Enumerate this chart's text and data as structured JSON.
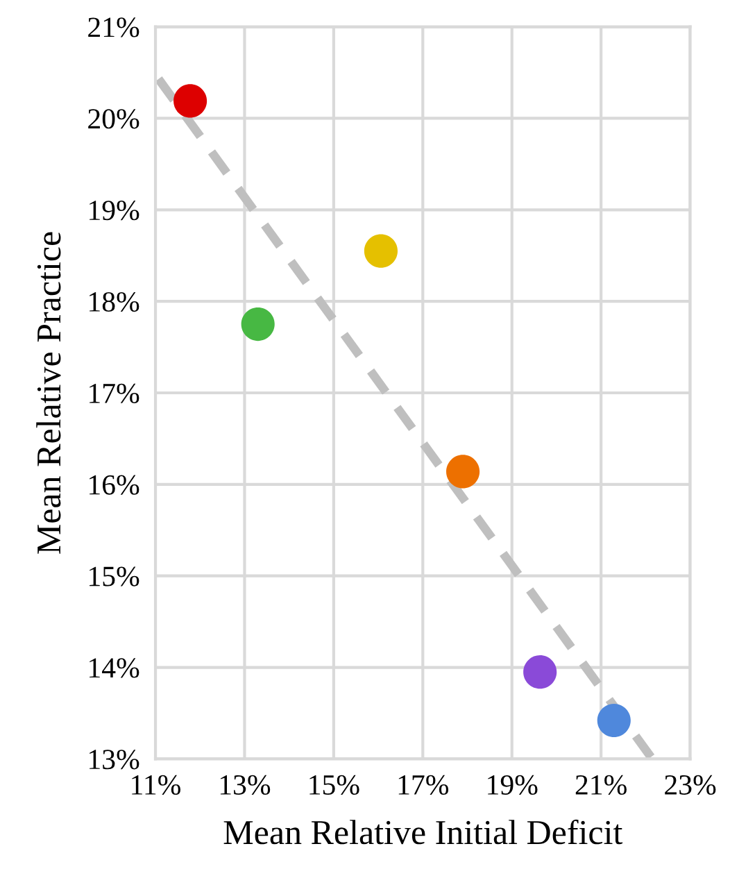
{
  "chart_data": {
    "type": "scatter",
    "xlabel": "Mean Relative Initial Deficit",
    "ylabel": "Mean Relative Practice",
    "xlim": [
      11,
      23
    ],
    "ylim": [
      13,
      21
    ],
    "xticks": [
      {
        "value": 11,
        "label": "11%"
      },
      {
        "value": 13,
        "label": "13%"
      },
      {
        "value": 15,
        "label": "15%"
      },
      {
        "value": 17,
        "label": "17%"
      },
      {
        "value": 19,
        "label": "19%"
      },
      {
        "value": 21,
        "label": "21%"
      },
      {
        "value": 23,
        "label": "23%"
      }
    ],
    "yticks": [
      {
        "value": 13,
        "label": "13%"
      },
      {
        "value": 14,
        "label": "14%"
      },
      {
        "value": 15,
        "label": "15%"
      },
      {
        "value": 16,
        "label": "16%"
      },
      {
        "value": 17,
        "label": "17%"
      },
      {
        "value": 18,
        "label": "18%"
      },
      {
        "value": 19,
        "label": "19%"
      },
      {
        "value": 20,
        "label": "20%"
      },
      {
        "value": 21,
        "label": "21%"
      }
    ],
    "grid": true,
    "marker": "circle",
    "series": [
      {
        "type": "line",
        "color": "#bfbfbf",
        "line_style": "dashed",
        "marker": "none",
        "x": [
          11.07,
          22.15
        ],
        "values": [
          20.43,
          13.0
        ]
      },
      {
        "x": [
          11.78,
          13.3,
          16.06,
          17.9,
          19.63,
          21.29
        ],
        "values": [
          20.19,
          17.75,
          18.55,
          16.14,
          13.95,
          13.42
        ],
        "colors": [
          "#dd0000",
          "#47b843",
          "#e5c000",
          "#ed7000",
          "#8a4ad8",
          "#4f88dc"
        ]
      }
    ]
  }
}
